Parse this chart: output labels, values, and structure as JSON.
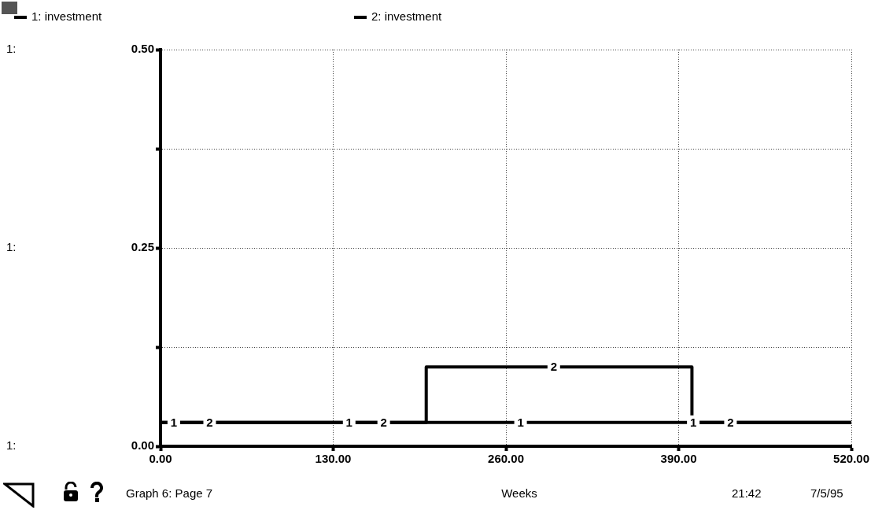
{
  "chart_data": {
    "type": "line",
    "xlabel": "Weeks",
    "series": [
      {
        "name": "1: investment",
        "color": "#000000",
        "x": [
          0,
          520
        ],
        "values": [
          0.03,
          0.03
        ]
      },
      {
        "name": "2: investment",
        "color": "#000000",
        "x": [
          0,
          200,
          200,
          400,
          400,
          520
        ],
        "values": [
          0.03,
          0.03,
          0.1,
          0.1,
          0.03,
          0.03
        ]
      }
    ],
    "xlim": [
      0,
      520
    ],
    "xticks": [
      {
        "value": 0,
        "label": "0.00"
      },
      {
        "value": 130,
        "label": "130.00"
      },
      {
        "value": 260,
        "label": "260.00"
      },
      {
        "value": 390,
        "label": "390.00"
      },
      {
        "value": 520,
        "label": "520.00"
      }
    ],
    "ylim": [
      0,
      0.5
    ],
    "yticks": [
      {
        "value": 0,
        "label": "0.00"
      },
      {
        "value": 0.125,
        "label": null
      },
      {
        "value": 0.25,
        "label": "0.25"
      },
      {
        "value": 0.375,
        "label": null
      },
      {
        "value": 0.5,
        "label": "0.50"
      }
    ],
    "grid": true,
    "legend": "top",
    "marker": "none",
    "line_style": "solid",
    "annotations": [
      "1:",
      "1:",
      "1:",
      "Graph 6: Page 7",
      "21:42",
      "7/5/95",
      {
        "text": "1",
        "x": 10,
        "y": 0.03
      },
      {
        "text": "2",
        "x": 37,
        "y": 0.03
      },
      {
        "text": "1",
        "x": 142,
        "y": 0.03
      },
      {
        "text": "2",
        "x": 168,
        "y": 0.03
      },
      {
        "text": "1",
        "x": 271,
        "y": 0.03
      },
      {
        "text": "2",
        "x": 296,
        "y": 0.1
      },
      {
        "text": "1",
        "x": 401,
        "y": 0.03
      },
      {
        "text": "2",
        "x": 429,
        "y": 0.03
      }
    ]
  }
}
